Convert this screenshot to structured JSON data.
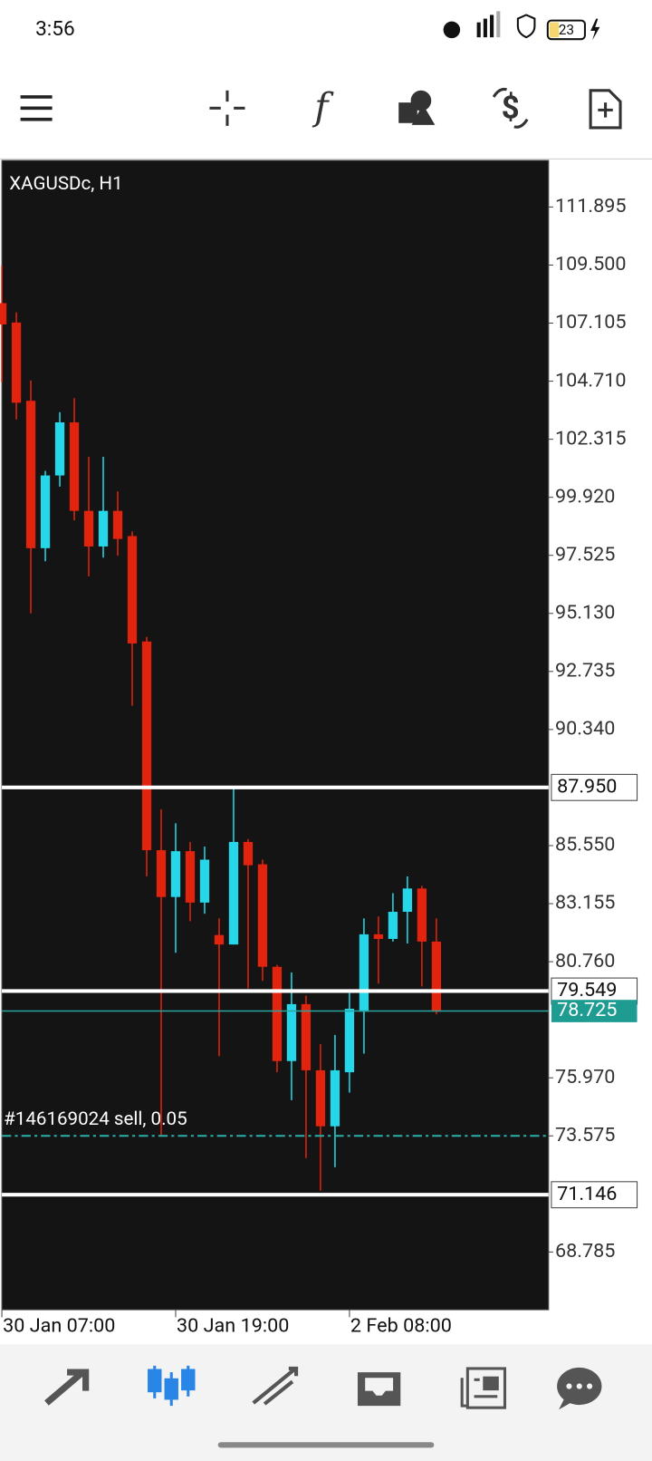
{
  "status_bar": {
    "time": "3:56",
    "battery": "23"
  },
  "chart_data": {
    "type": "candlestick",
    "title": "XAGUSDc, H1",
    "categories": [
      "30 Jan 07:00",
      null,
      null,
      null,
      null,
      null,
      null,
      null,
      null,
      null,
      null,
      null,
      "30 Jan 19:00",
      null,
      null,
      null,
      null,
      null,
      null,
      null,
      null,
      null,
      null,
      null,
      "2 Feb 08:00",
      null,
      null,
      null,
      null,
      null,
      null
    ],
    "open": [
      107.93,
      107.13,
      103.9,
      97.82,
      100.82,
      103.01,
      99.36,
      97.89,
      99.36,
      98.32,
      93.97,
      85.36,
      83.43,
      85.32,
      83.2,
      81.86,
      81.47,
      85.7,
      84.78,
      80.55,
      76.66,
      79.01,
      76.28,
      73.97,
      76.2,
      78.7,
      81.89,
      81.7,
      82.82,
      83.78,
      81.59
    ],
    "high": [
      109.47,
      107.55,
      104.74,
      101.01,
      103.43,
      104.01,
      101.59,
      101.59,
      100.16,
      98.51,
      94.16,
      87.05,
      86.47,
      85.7,
      85.51,
      82.55,
      87.9,
      85.82,
      84.97,
      80.63,
      80.32,
      79.36,
      77.36,
      77.74,
      79.47,
      82.55,
      82.63,
      83.59,
      84.28,
      83.89,
      82.55
    ],
    "low": [
      104.66,
      103.13,
      95.13,
      97.28,
      100.36,
      98.97,
      96.66,
      97.43,
      97.51,
      91.32,
      84.28,
      73.59,
      81.13,
      82.43,
      82.74,
      76.86,
      81.47,
      79.66,
      79.97,
      76.2,
      75.05,
      72.66,
      71.32,
      72.28,
      75.36,
      76.97,
      79.86,
      81.59,
      81.51,
      79.74,
      78.59
    ],
    "close": [
      107.05,
      103.82,
      97.82,
      100.82,
      103.01,
      99.36,
      97.89,
      99.36,
      98.2,
      93.89,
      85.36,
      83.43,
      85.32,
      83.2,
      84.97,
      81.47,
      85.7,
      84.74,
      80.55,
      76.66,
      79.01,
      76.28,
      73.97,
      76.28,
      78.82,
      81.89,
      81.7,
      82.82,
      83.78,
      81.59,
      78.7
    ],
    "up_color": "#25d7e8",
    "down_color": "#e2230e",
    "ylim": [
      66.4,
      113.82
    ],
    "yticks": [
      111.895,
      {
        "value": 109.5,
        "label": "109.500"
      },
      107.105,
      {
        "value": 104.71,
        "label": "104.710"
      },
      102.315,
      {
        "value": 99.92,
        "label": "99.920"
      },
      97.525,
      {
        "value": 95.13,
        "label": "95.130"
      },
      92.735,
      {
        "value": 90.34,
        "label": "90.340"
      },
      {
        "value": 85.55,
        "label": "85.550"
      },
      83.155,
      {
        "value": 80.76,
        "label": "80.760"
      },
      {
        "value": 75.97,
        "label": "75.970"
      },
      73.575,
      68.785
    ],
    "levels": [
      {
        "value": 87.95,
        "label": "87.950"
      },
      {
        "value": 79.549,
        "label": "79.549"
      },
      {
        "value": 71.146,
        "label": "71.146"
      }
    ],
    "current_price": {
      "value": 78.725,
      "label": "78.725"
    },
    "order": {
      "value": 73.575,
      "label": "#146169024 sell, 0.05"
    }
  }
}
